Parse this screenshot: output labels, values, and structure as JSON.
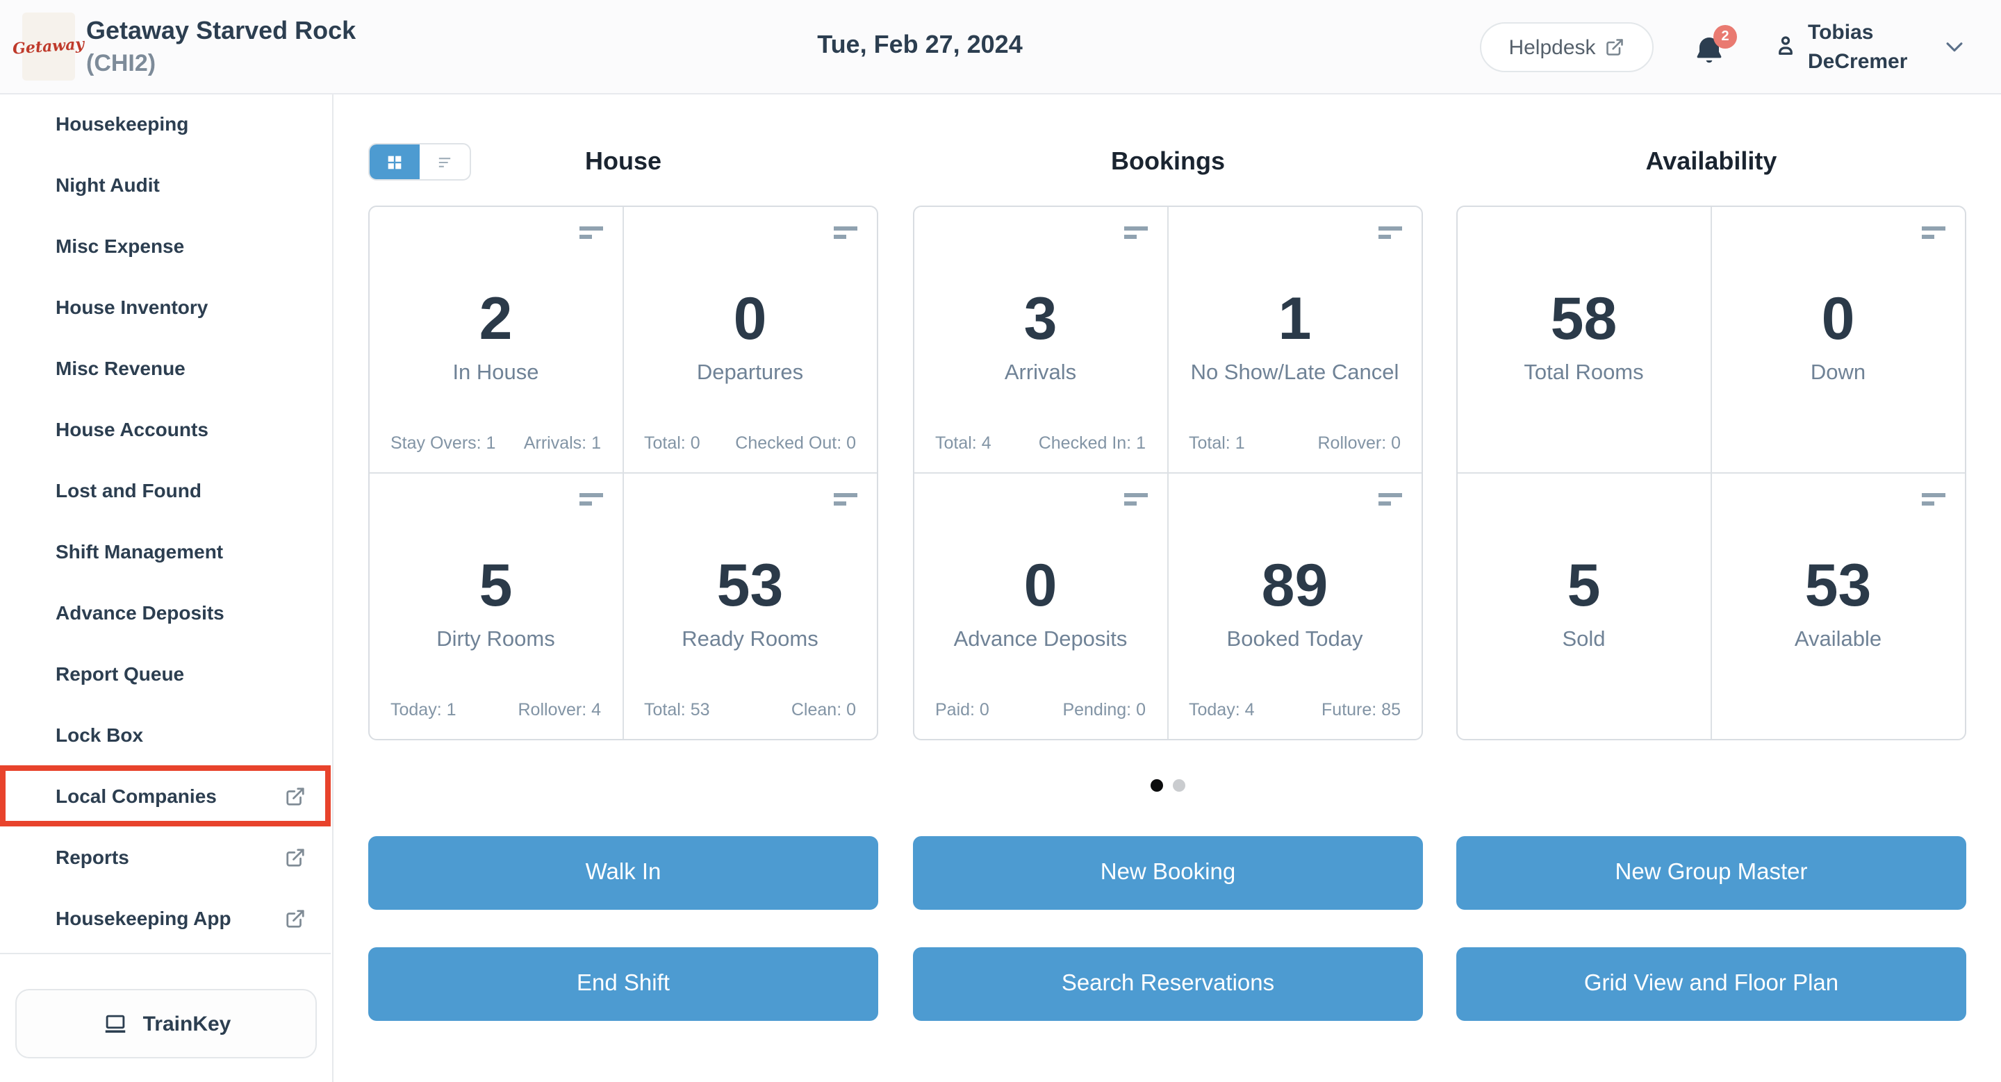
{
  "colors": {
    "accent_blue": "#4d9bd1",
    "highlight_red": "#e8432c",
    "badge_red": "#e97a71",
    "logo_red": "#bf3a2b",
    "label_gray": "#6f8296",
    "footer_gray": "#8294a5"
  },
  "header": {
    "logo_text": "Getaway",
    "property_name": "Getaway Starved Rock",
    "property_code": "(CHI2)",
    "date": "Tue, Feb 27, 2024",
    "helpdesk_label": "Helpdesk",
    "notification_count": "2",
    "user_name": [
      "Tobias",
      "DeCremer"
    ]
  },
  "sidebar": {
    "items": [
      {
        "label": "Housekeeping",
        "external": false,
        "highlighted": false
      },
      {
        "label": "Night Audit",
        "external": false,
        "highlighted": false
      },
      {
        "label": "Misc Expense",
        "external": false,
        "highlighted": false
      },
      {
        "label": "House Inventory",
        "external": false,
        "highlighted": false
      },
      {
        "label": "Misc Revenue",
        "external": false,
        "highlighted": false
      },
      {
        "label": "House Accounts",
        "external": false,
        "highlighted": false
      },
      {
        "label": "Lost and Found",
        "external": false,
        "highlighted": false
      },
      {
        "label": "Shift Management",
        "external": false,
        "highlighted": false
      },
      {
        "label": "Advance Deposits",
        "external": false,
        "highlighted": false
      },
      {
        "label": "Report Queue",
        "external": false,
        "highlighted": false
      },
      {
        "label": "Lock Box",
        "external": false,
        "highlighted": false
      },
      {
        "label": "Local Companies",
        "external": true,
        "highlighted": true
      },
      {
        "label": "Reports",
        "external": true,
        "highlighted": false
      },
      {
        "label": "Housekeeping App",
        "external": true,
        "highlighted": false
      }
    ],
    "trainkey_label": "TrainKey"
  },
  "dashboard": {
    "sections": [
      {
        "title": "House",
        "cards": [
          {
            "value": "2",
            "label": "In House",
            "footer_left": "Stay Overs: 1",
            "footer_right": "Arrivals: 1",
            "menu_icon": true
          },
          {
            "value": "0",
            "label": "Departures",
            "footer_left": "Total: 0",
            "footer_right": "Checked Out: 0",
            "menu_icon": true
          },
          {
            "value": "5",
            "label": "Dirty Rooms",
            "footer_left": "Today: 1",
            "footer_right": "Rollover: 4",
            "menu_icon": true
          },
          {
            "value": "53",
            "label": "Ready Rooms",
            "footer_left": "Total: 53",
            "footer_right": "Clean: 0",
            "menu_icon": true
          }
        ]
      },
      {
        "title": "Bookings",
        "cards": [
          {
            "value": "3",
            "label": "Arrivals",
            "footer_left": "Total: 4",
            "footer_right": "Checked In: 1",
            "menu_icon": true
          },
          {
            "value": "1",
            "label": "No Show/Late Cancel",
            "footer_left": "Total: 1",
            "footer_right": "Rollover: 0",
            "menu_icon": true
          },
          {
            "value": "0",
            "label": "Advance Deposits",
            "footer_left": "Paid: 0",
            "footer_right": "Pending: 0",
            "menu_icon": true
          },
          {
            "value": "89",
            "label": "Booked Today",
            "footer_left": "Today: 4",
            "footer_right": "Future: 85",
            "menu_icon": true
          }
        ]
      },
      {
        "title": "Availability",
        "cards": [
          {
            "value": "58",
            "label": "Total Rooms",
            "footer_left": null,
            "footer_right": null,
            "menu_icon": false
          },
          {
            "value": "0",
            "label": "Down",
            "footer_left": null,
            "footer_right": null,
            "menu_icon": true
          },
          {
            "value": "5",
            "label": "Sold",
            "footer_left": null,
            "footer_right": null,
            "menu_icon": false
          },
          {
            "value": "53",
            "label": "Available",
            "footer_left": null,
            "footer_right": null,
            "menu_icon": true
          }
        ]
      }
    ],
    "carousel": {
      "dot_count": 2,
      "active_dot": 0
    },
    "actions": [
      "Walk In",
      "New Booking",
      "New Group Master",
      "End Shift",
      "Search Reservations",
      "Grid View and Floor Plan"
    ]
  }
}
